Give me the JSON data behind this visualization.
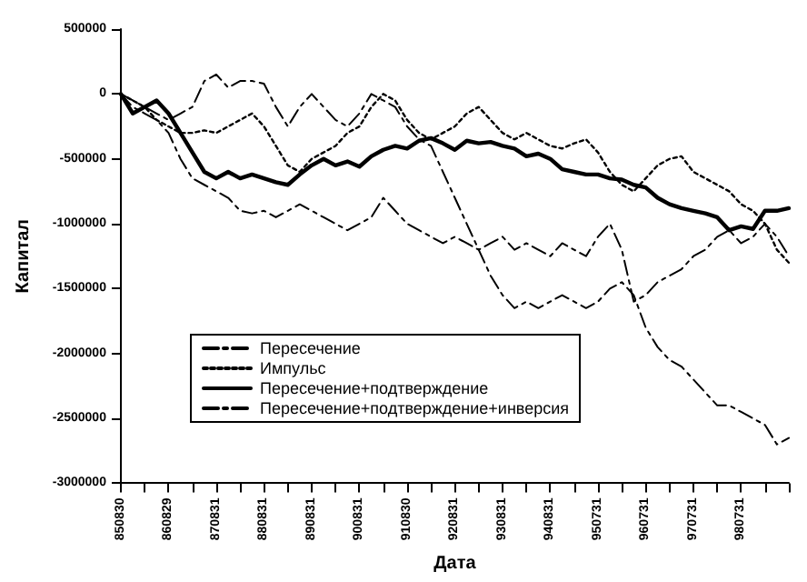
{
  "chart_data": {
    "type": "line",
    "xlabel": "Дата",
    "ylabel": "Капитал",
    "categories": [
      "850830",
      null,
      null,
      null,
      "860829",
      null,
      null,
      null,
      "870831",
      null,
      null,
      null,
      "880831",
      null,
      null,
      null,
      "890831",
      null,
      null,
      null,
      "900831",
      null,
      null,
      null,
      "910830",
      null,
      null,
      null,
      "920831",
      null,
      null,
      null,
      "930831",
      null,
      null,
      null,
      "940831",
      null,
      null,
      null,
      "950731",
      null,
      null,
      null,
      "960731",
      null,
      null,
      null,
      "970731",
      null,
      null,
      null,
      "980731",
      null,
      null,
      null,
      null
    ],
    "series": [
      {
        "name": "Пересечение",
        "color": "#000000",
        "line_style": "dashed",
        "values": [
          0,
          -50000,
          -100000,
          -150000,
          -200000,
          -150000,
          -100000,
          100000,
          150000,
          50000,
          100000,
          100000,
          80000,
          -100000,
          -250000,
          -100000,
          0,
          -100000,
          -200000,
          -250000,
          -150000,
          0,
          -50000,
          -100000,
          -250000,
          -350000,
          -400000,
          -600000,
          -800000,
          -1000000,
          -1200000,
          -1400000,
          -1550000,
          -1650000,
          -1600000,
          -1650000,
          -1600000,
          -1550000,
          -1600000,
          -1650000,
          -1600000,
          -1500000,
          -1450000,
          -1550000,
          -1800000,
          -1950000,
          -2050000,
          -2100000,
          -2200000,
          -2300000,
          -2400000,
          -2400000,
          -2450000,
          -2500000,
          -2550000,
          -2700000,
          -2650000
        ]
      },
      {
        "name": "Импульс",
        "color": "#000000",
        "line_style": "dotted",
        "values": [
          0,
          -50000,
          -100000,
          -200000,
          -250000,
          -300000,
          -300000,
          -280000,
          -300000,
          -250000,
          -200000,
          -150000,
          -250000,
          -400000,
          -550000,
          -600000,
          -500000,
          -450000,
          -400000,
          -300000,
          -250000,
          -100000,
          0,
          -50000,
          -200000,
          -300000,
          -350000,
          -300000,
          -250000,
          -150000,
          -100000,
          -200000,
          -300000,
          -350000,
          -300000,
          -350000,
          -400000,
          -420000,
          -380000,
          -350000,
          -450000,
          -600000,
          -700000,
          -750000,
          -650000,
          -550000,
          -500000,
          -480000,
          -600000,
          -650000,
          -700000,
          -750000,
          -850000,
          -900000,
          -1000000,
          -1200000,
          -1300000
        ]
      },
      {
        "name": "Пересечение+подтверждение",
        "color": "#000000",
        "line_style": "solid",
        "values": [
          0,
          -150000,
          -100000,
          -50000,
          -150000,
          -300000,
          -450000,
          -600000,
          -650000,
          -600000,
          -650000,
          -620000,
          -650000,
          -680000,
          -700000,
          -620000,
          -550000,
          -500000,
          -550000,
          -520000,
          -560000,
          -480000,
          -430000,
          -400000,
          -420000,
          -360000,
          -340000,
          -380000,
          -430000,
          -360000,
          -380000,
          -370000,
          -400000,
          -420000,
          -480000,
          -460000,
          -500000,
          -580000,
          -600000,
          -620000,
          -620000,
          -650000,
          -660000,
          -700000,
          -720000,
          -800000,
          -850000,
          -880000,
          -900000,
          -920000,
          -950000,
          -1050000,
          -1020000,
          -1040000,
          -900000,
          -900000,
          -880000
        ]
      },
      {
        "name": "Пересечение+подтверждение+инверсия",
        "color": "#000000",
        "line_style": "dashed",
        "values": [
          0,
          -100000,
          -150000,
          -200000,
          -300000,
          -500000,
          -650000,
          -700000,
          -750000,
          -800000,
          -900000,
          -920000,
          -900000,
          -950000,
          -900000,
          -850000,
          -900000,
          -950000,
          -1000000,
          -1050000,
          -1000000,
          -950000,
          -800000,
          -900000,
          -1000000,
          -1050000,
          -1100000,
          -1150000,
          -1100000,
          -1150000,
          -1200000,
          -1150000,
          -1100000,
          -1200000,
          -1150000,
          -1200000,
          -1250000,
          -1150000,
          -1200000,
          -1250000,
          -1100000,
          -1000000,
          -1200000,
          -1600000,
          -1550000,
          -1450000,
          -1400000,
          -1350000,
          -1250000,
          -1200000,
          -1100000,
          -1050000,
          -1150000,
          -1100000,
          -1000000,
          -1100000,
          -1250000
        ]
      }
    ],
    "ylim": [
      -3000000,
      500000
    ],
    "yticks": [
      -3000000,
      -2500000,
      -2000000,
      -1500000,
      -1000000,
      -500000,
      0,
      500000
    ],
    "legend": "bottom",
    "grid": false,
    "marker": "none"
  }
}
